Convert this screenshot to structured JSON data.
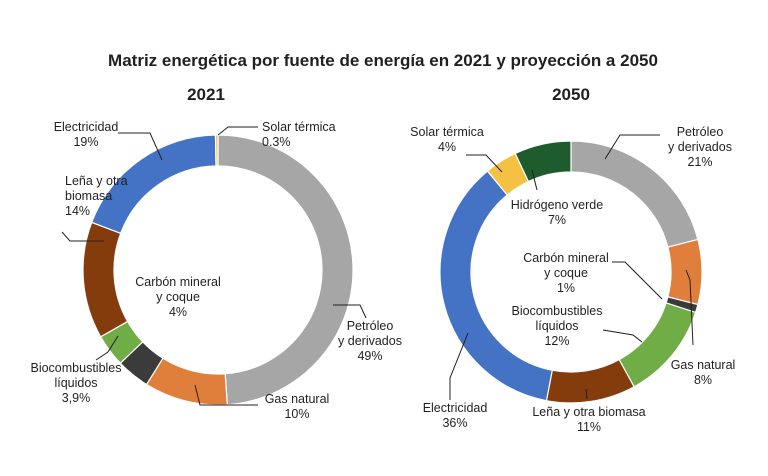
{
  "chart_data": {
    "type": "donut",
    "title": "Matriz energética por fuente de energía en 2021 y proyección a 2050",
    "charts": [
      {
        "subtitle": "2021",
        "start_angle_deg": 90,
        "slices": [
          {
            "label": [
              "Petróleo",
              "y derivados"
            ],
            "value": 49,
            "value_text": "49%",
            "color": "#a6a6a6"
          },
          {
            "label": [
              "Gas natural"
            ],
            "value": 10,
            "value_text": "10%",
            "color": "#e07f3c"
          },
          {
            "label": [
              "Carbón mineral",
              "y coque"
            ],
            "value": 4,
            "value_text": "4%",
            "color": "#3b3b3b"
          },
          {
            "label": [
              "Biocombustibles",
              "líquidos"
            ],
            "value": 3.9,
            "value_text": "3,9%",
            "color": "#70ad47"
          },
          {
            "label": [
              "Leña y otra",
              "biomasa"
            ],
            "value": 14,
            "value_text": "14%",
            "color": "#843c0c"
          },
          {
            "label": [
              "Electricidad"
            ],
            "value": 19,
            "value_text": "19%",
            "color": "#4472c4"
          },
          {
            "label": [
              "Solar térmica"
            ],
            "value": 0.3,
            "value_text": "0.3%",
            "color": "#f4c142"
          }
        ]
      },
      {
        "subtitle": "2050",
        "start_angle_deg": 90,
        "slices": [
          {
            "label": [
              "Petróleo",
              "y derivados"
            ],
            "value": 21,
            "value_text": "21%",
            "color": "#a6a6a6"
          },
          {
            "label": [
              "Gas natural"
            ],
            "value": 8,
            "value_text": "8%",
            "color": "#e07f3c"
          },
          {
            "label": [
              "Carbón mineral",
              "y coque"
            ],
            "value": 1,
            "value_text": "1%",
            "color": "#3b3b3b"
          },
          {
            "label": [
              "Biocombustibles",
              "líquidos"
            ],
            "value": 12,
            "value_text": "12%",
            "color": "#70ad47"
          },
          {
            "label": [
              "Leña y otra biomasa"
            ],
            "value": 11,
            "value_text": "11%",
            "color": "#843c0c"
          },
          {
            "label": [
              "Electricidad"
            ],
            "value": 36,
            "value_text": "36%",
            "color": "#4472c4"
          },
          {
            "label": [
              "Solar térmica"
            ],
            "value": 4,
            "value_text": "4%",
            "color": "#f4c142"
          },
          {
            "label": [
              "Hidrógeno verde"
            ],
            "value": 7,
            "value_text": "7%",
            "color": "#1e5c2e"
          }
        ]
      }
    ]
  }
}
